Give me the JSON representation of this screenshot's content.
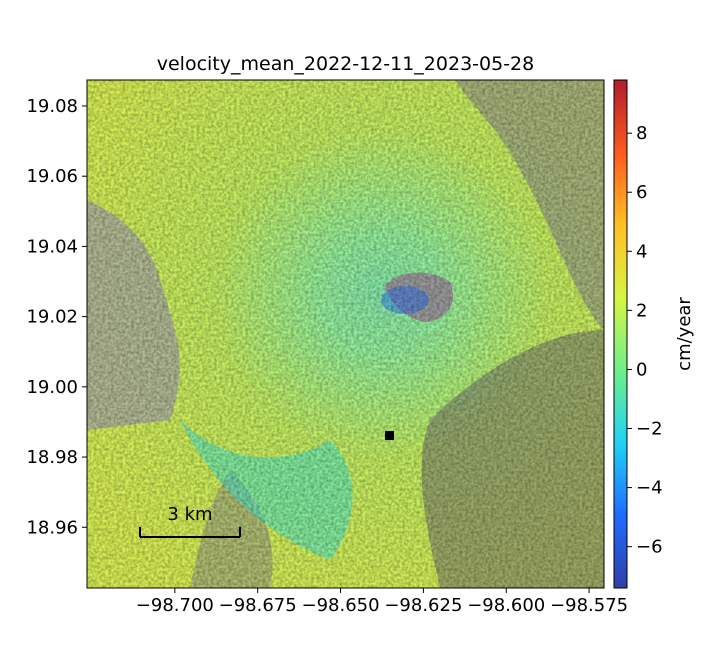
{
  "chart_data": {
    "type": "heatmap",
    "title": "velocity_mean_2022-12-11_2023-05-28",
    "xlabel": "",
    "ylabel": "",
    "x_ticks": [
      -98.7,
      -98.675,
      -98.65,
      -98.625,
      -98.6,
      -98.575
    ],
    "x_tick_labels": [
      "−98.700",
      "−98.675",
      "−98.650",
      "−98.625",
      "−98.600",
      "−98.575"
    ],
    "xlim": [
      -98.7265,
      -98.5705
    ],
    "y_ticks": [
      18.96,
      18.98,
      19.0,
      19.02,
      19.04,
      19.06,
      19.08
    ],
    "y_tick_labels": [
      "18.96",
      "18.98",
      "19.00",
      "19.02",
      "19.04",
      "19.06",
      "19.08"
    ],
    "ylim": [
      18.9427,
      19.0874
    ],
    "colorbar": {
      "label": "cm/year",
      "range": [
        -7.4,
        9.8
      ],
      "ticks": [
        -6,
        -4,
        -2,
        0,
        2,
        4,
        6,
        8
      ],
      "tick_labels": [
        "−6",
        "−4",
        "−2",
        "0",
        "2",
        "4",
        "6",
        "8"
      ],
      "colormap": "jet",
      "colors": [
        "#303ea8",
        "#1e6cff",
        "#21d2f5",
        "#6ef08a",
        "#d6f542",
        "#ffc124",
        "#ff5a1e",
        "#b01d2c"
      ]
    },
    "reference_point": {
      "x": -98.628,
      "y": 18.986,
      "color": "#000000"
    },
    "scalebar": {
      "label": "3 km",
      "x_start": -98.7,
      "x_end": -98.672,
      "y": 18.958
    },
    "summer_peak": {
      "x": -98.622,
      "y": 19.02,
      "label": ""
    }
  }
}
